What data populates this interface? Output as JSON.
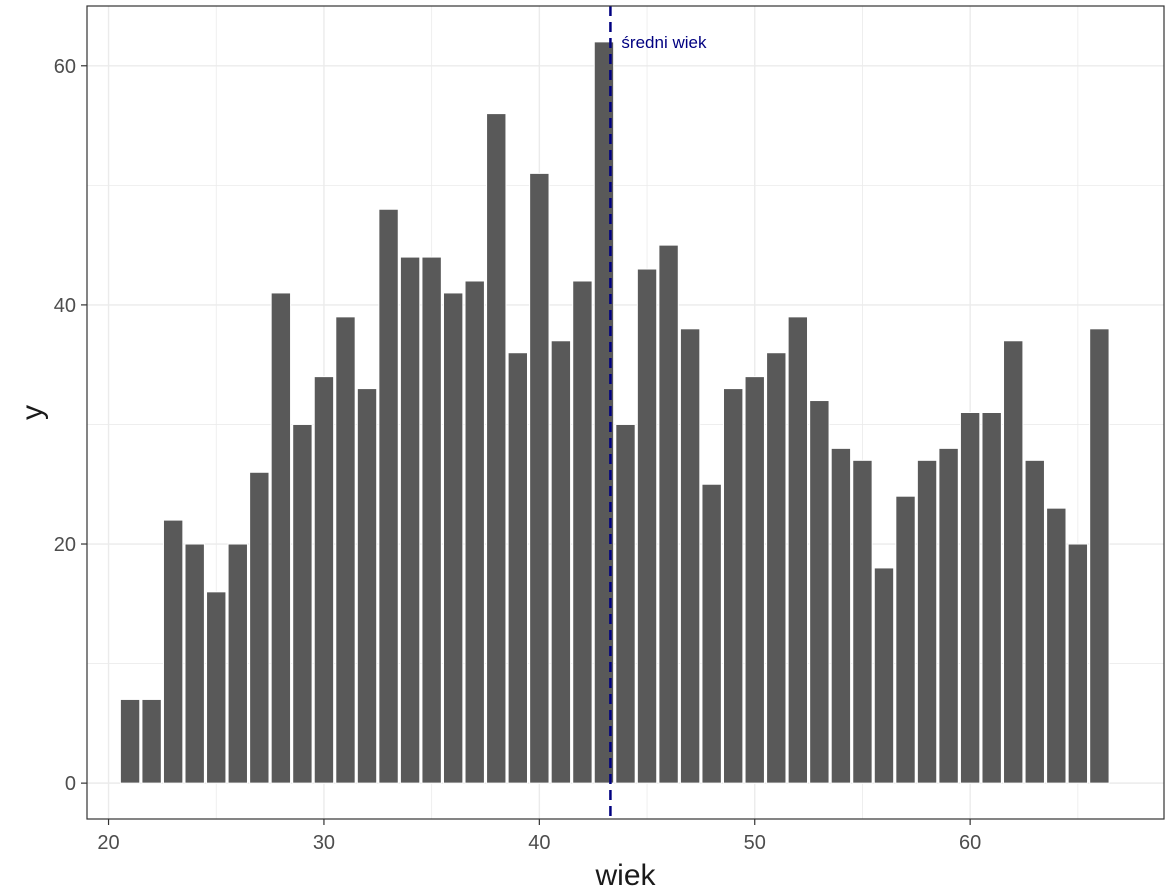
{
  "chart_data": {
    "type": "bar",
    "xlabel": "wiek",
    "ylabel": "y",
    "xlim": [
      19,
      69
    ],
    "ylim": [
      -3,
      65
    ],
    "x_ticks": [
      20,
      30,
      40,
      50,
      60
    ],
    "y_ticks": [
      0,
      20,
      40,
      60
    ],
    "grid": true,
    "x": [
      21,
      22,
      23,
      24,
      25,
      26,
      27,
      28,
      29,
      30,
      31,
      32,
      33,
      34,
      35,
      36,
      37,
      38,
      39,
      40,
      41,
      42,
      43,
      44,
      45,
      46,
      47,
      48,
      49,
      50,
      51,
      52,
      53,
      54,
      55,
      56,
      57,
      58,
      59,
      60,
      61,
      62,
      63,
      64,
      65,
      66
    ],
    "values": [
      7,
      7,
      22,
      20,
      16,
      20,
      26,
      41,
      30,
      34,
      39,
      33,
      48,
      44,
      44,
      41,
      42,
      56,
      36,
      51,
      37,
      42,
      62,
      30,
      43,
      45,
      38,
      25,
      33,
      34,
      36,
      39,
      32,
      28,
      27,
      18,
      24,
      27,
      28,
      31,
      31,
      37,
      27,
      23,
      20,
      38
    ],
    "mean_line": {
      "x": 43.3,
      "label": "średni wiek"
    },
    "colors": {
      "bar": "#595959",
      "bar_stroke": "#ffffff",
      "mean_line": "#000080",
      "grid": "#ebebeb",
      "panel_border": "#333333"
    }
  }
}
